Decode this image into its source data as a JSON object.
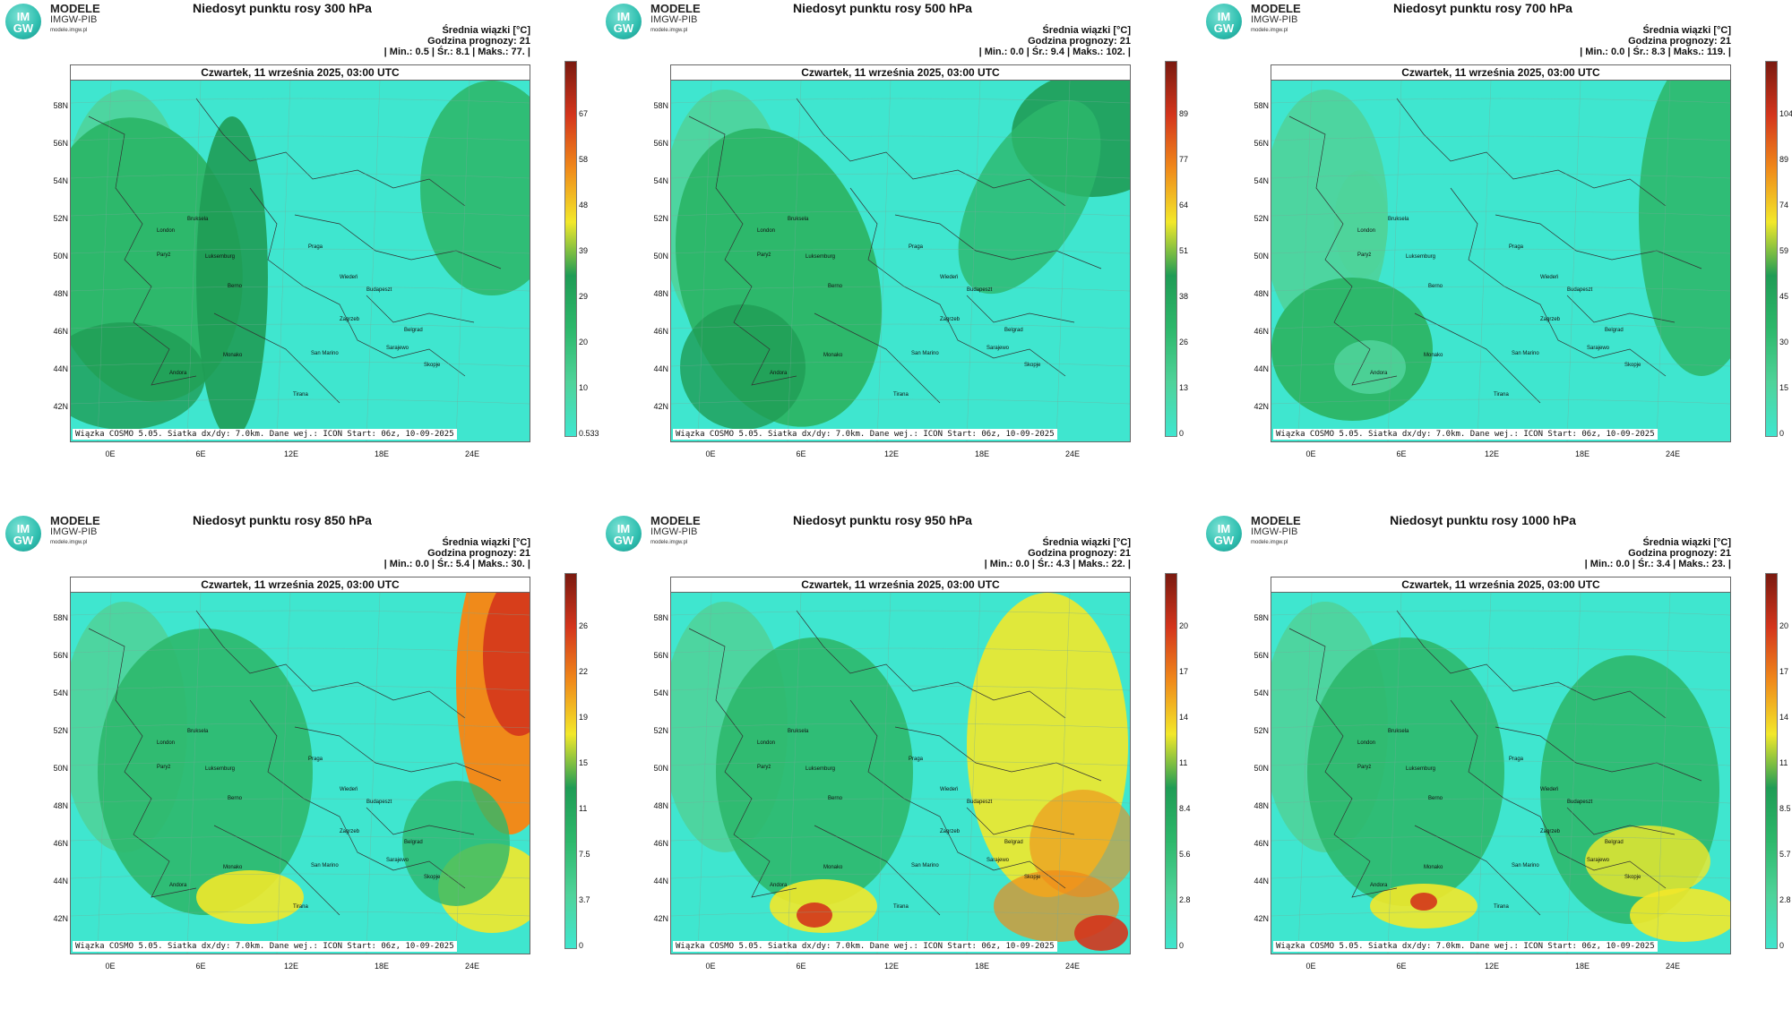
{
  "brand": {
    "line1": "MODELE",
    "line2": "IMGW-PIB",
    "line3": "modele.imgw.pl",
    "logo_text": "IM GW"
  },
  "common": {
    "date": "Czwartek, 11 września 2025, 03:00 UTC",
    "footer": "Wiązka  COSMO 5.05. Siatka dx/dy: 7.0km. Dane wej.: ICON Start: 06z, 10-09-2025",
    "stat_label": "Średnia wiązki [°C]",
    "forecast": "Godzina prognozy: 21",
    "lat_labels": [
      "58N",
      "56N",
      "54N",
      "52N",
      "50N",
      "48N",
      "46N",
      "44N",
      "42N"
    ],
    "lon_labels": [
      "0E",
      "6E",
      "12E",
      "18E",
      "24E"
    ],
    "cities": [
      "London",
      "Paryż",
      "Bruksela",
      "Luksemburg",
      "Berno",
      "Praga",
      "Wiedeń",
      "Budapeszt",
      "Zagrzeb",
      "San Marino",
      "Monako",
      "Belgrad",
      "Sarajewo",
      "Skopje",
      "Andora",
      "Tirana"
    ]
  },
  "panels": [
    {
      "title": "Niedosyt punktu rosy 300 hPa",
      "stats": "| Min.:     0.5 | Śr.:     8.1 | Maks.:     77. |",
      "ticks": [
        "67",
        "58",
        "48",
        "39",
        "29",
        "20",
        "10",
        "0.533"
      ],
      "scheme": "300"
    },
    {
      "title": "Niedosyt punktu rosy 500 hPa",
      "stats": "| Min.:     0.0 | Śr.:     9.4 | Maks.:    102. |",
      "ticks": [
        "89",
        "77",
        "64",
        "51",
        "38",
        "26",
        "13",
        "0"
      ],
      "scheme": "500"
    },
    {
      "title": "Niedosyt punktu rosy 700 hPa",
      "stats": "| Min.:     0.0 | Śr.:     8.3 | Maks.:    119. |",
      "ticks": [
        "104",
        "89",
        "74",
        "59",
        "45",
        "30",
        "15",
        "0"
      ],
      "scheme": "700"
    },
    {
      "title": "Niedosyt punktu rosy 850 hPa",
      "stats": "| Min.:     0.0 | Śr.:     5.4 | Maks.:     30. |",
      "ticks": [
        "26",
        "22",
        "19",
        "15",
        "11",
        "7.5",
        "3.7",
        "0"
      ],
      "scheme": "850"
    },
    {
      "title": "Niedosyt punktu rosy 950 hPa",
      "stats": "| Min.:     0.0 | Śr.:     4.3 | Maks.:     22. |",
      "ticks": [
        "20",
        "17",
        "14",
        "11",
        "8.4",
        "5.6",
        "2.8",
        "0"
      ],
      "scheme": "950"
    },
    {
      "title": "Niedosyt punktu rosy 1000 hPa",
      "stats": "| Min.:     0.0 | Śr.:     3.4 | Maks.:     23. |",
      "ticks": [
        "20",
        "17",
        "14",
        "11",
        "8.5",
        "5.7",
        "2.8",
        "0"
      ],
      "scheme": "1000"
    }
  ],
  "colors": {
    "cyan": "#3fe6cf",
    "green_light": "#4fd39a",
    "green": "#2db86b",
    "green_dark": "#1f9c55",
    "yellow": "#f2e82a",
    "orange": "#f08a1a",
    "red": "#d4351c",
    "dark_red": "#7a1a10"
  }
}
